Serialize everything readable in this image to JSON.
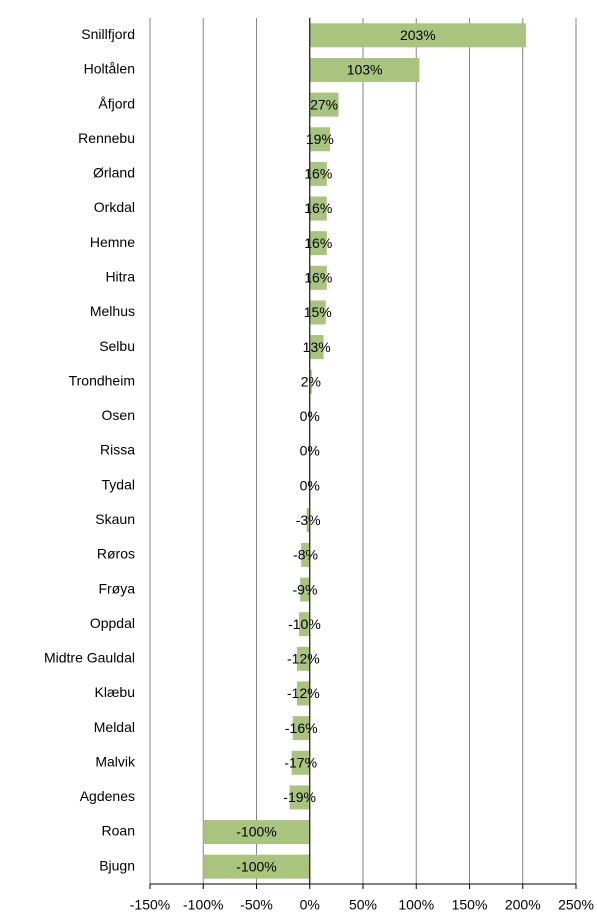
{
  "chart_data": {
    "type": "bar",
    "orientation": "horizontal",
    "categories": [
      "Snillfjord",
      "Holtålen",
      "Åfjord",
      "Rennebu",
      "Ørland",
      "Orkdal",
      "Hemne",
      "Hitra",
      "Melhus",
      "Selbu",
      "Trondheim",
      "Osen",
      "Rissa",
      "Tydal",
      "Skaun",
      "Røros",
      "Frøya",
      "Oppdal",
      "Midtre Gauldal",
      "Klæbu",
      "Meldal",
      "Malvik",
      "Agdenes",
      "Roan",
      "Bjugn"
    ],
    "values": [
      203,
      103,
      27,
      19,
      16,
      16,
      16,
      16,
      15,
      13,
      2,
      0,
      0,
      0,
      -3,
      -8,
      -9,
      -10,
      -12,
      -12,
      -16,
      -17,
      -19,
      -100,
      -100
    ],
    "value_labels": [
      "203%",
      "103%",
      "27%",
      "19%",
      "16%",
      "16%",
      "16%",
      "16%",
      "15%",
      "13%",
      "2%",
      "0%",
      "0%",
      "0%",
      "-3%",
      "-8%",
      "-9%",
      "-10%",
      "-12%",
      "-12%",
      "-16%",
      "-17%",
      "-19%",
      "-100%",
      "-100%"
    ],
    "color": "#a9c47f",
    "xlim": [
      -150,
      250
    ],
    "xticks": [
      {
        "value": -150,
        "label": "-150%"
      },
      {
        "value": -100,
        "label": "-100%"
      },
      {
        "value": -50,
        "label": "-50%"
      },
      {
        "value": 0,
        "label": "0%"
      },
      {
        "value": 50,
        "label": "50%"
      },
      {
        "value": 100,
        "label": "100%"
      },
      {
        "value": 150,
        "label": "150%"
      },
      {
        "value": 200,
        "label": "200%"
      },
      {
        "value": 250,
        "label": "250%"
      }
    ],
    "grid": true
  }
}
